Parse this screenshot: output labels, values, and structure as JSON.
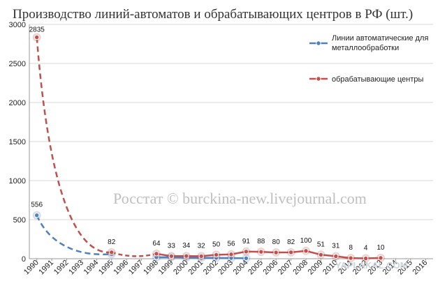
{
  "chart_data": {
    "type": "line",
    "title": "Производство линий-автоматов и обрабатывающих центров в РФ (шт.)",
    "ylim": [
      0,
      3000
    ],
    "yticks": [
      0,
      500,
      1000,
      1500,
      2000,
      2500,
      3000
    ],
    "categories": [
      "1990",
      "1991",
      "1992",
      "1993",
      "1994",
      "1995",
      "1996",
      "1997",
      "1998",
      "1999",
      "2000",
      "2001",
      "2002",
      "2003",
      "2004",
      "2005",
      "2006",
      "2007",
      "2008",
      "2009",
      "2010",
      "2011",
      "2012",
      "2013",
      "2014",
      "2015",
      "2016"
    ],
    "legend_position": "top-right",
    "series": [
      {
        "name": "Линии автоматические для металлообработки",
        "color": "#4f81bd",
        "points": [
          {
            "x": "1990",
            "y": 556,
            "label": "556"
          },
          {
            "x": "1995",
            "y": 60
          },
          {
            "x": "1998",
            "y": 18
          },
          {
            "x": "1999",
            "y": 20
          },
          {
            "x": "2000",
            "y": 14
          },
          {
            "x": "2001",
            "y": 12
          },
          {
            "x": "2002",
            "y": 10
          },
          {
            "x": "2003",
            "y": 8
          },
          {
            "x": "2004",
            "y": 6
          }
        ]
      },
      {
        "name": "обрабатывающие центры",
        "color": "#c0504d",
        "points": [
          {
            "x": "1990",
            "y": 2835,
            "label": "2835"
          },
          {
            "x": "1995",
            "y": 82,
            "label": "82"
          },
          {
            "x": "1998",
            "y": 64,
            "label": "64"
          },
          {
            "x": "1999",
            "y": 33,
            "label": "33"
          },
          {
            "x": "2000",
            "y": 34,
            "label": "34"
          },
          {
            "x": "2001",
            "y": 32,
            "label": "32"
          },
          {
            "x": "2002",
            "y": 50,
            "label": "50"
          },
          {
            "x": "2003",
            "y": 56,
            "label": "56"
          },
          {
            "x": "2004",
            "y": 91,
            "label": "91"
          },
          {
            "x": "2005",
            "y": 88,
            "label": "88"
          },
          {
            "x": "2006",
            "y": 80,
            "label": "80"
          },
          {
            "x": "2007",
            "y": 82,
            "label": "82"
          },
          {
            "x": "2008",
            "y": 100,
            "label": "100"
          },
          {
            "x": "2009",
            "y": 51,
            "label": "51"
          },
          {
            "x": "2010",
            "y": 31,
            "label": "31"
          },
          {
            "x": "2011",
            "y": 8,
            "label": "8"
          },
          {
            "x": "2012",
            "y": 4,
            "label": "4"
          },
          {
            "x": "2013",
            "y": 10,
            "label": "10"
          }
        ]
      }
    ],
    "watermarks": [
      "Росстат © burckina-new.livejournal.com",
      "YAPLAKAL.COM"
    ]
  }
}
